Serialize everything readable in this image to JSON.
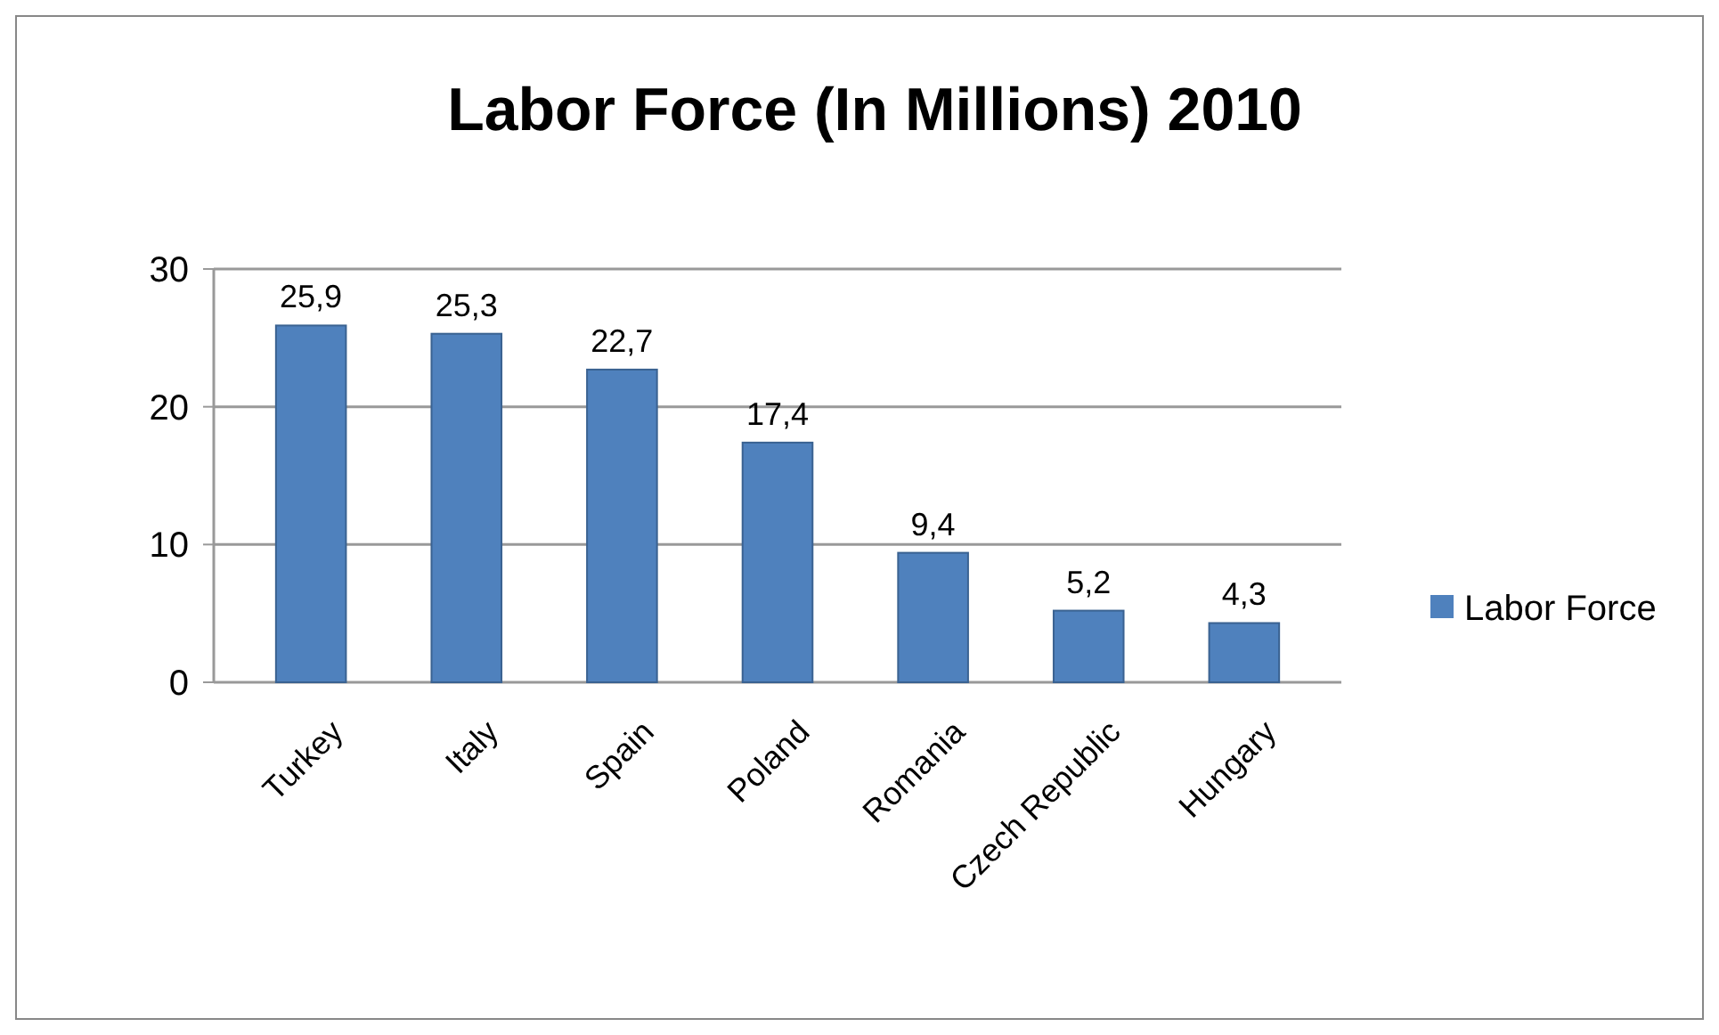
{
  "chart_data": {
    "type": "bar",
    "title": "Labor Force (In Millions) 2010",
    "categories": [
      "Turkey",
      "Italy",
      "Spain",
      "Poland",
      "Romania",
      "Czech Republic",
      "Hungary"
    ],
    "series": [
      {
        "name": "Labor Force",
        "color": "#4f81bd",
        "values": [
          25.9,
          25.3,
          22.7,
          17.4,
          9.4,
          5.2,
          4.3
        ],
        "value_labels": [
          "25,9",
          "25,3",
          "22,7",
          "17,4",
          "9,4",
          "5,2",
          "4,3"
        ]
      }
    ],
    "ylim": [
      0,
      30
    ],
    "yticks": [
      0,
      10,
      20,
      30
    ],
    "grid": "y",
    "legend": "right"
  }
}
